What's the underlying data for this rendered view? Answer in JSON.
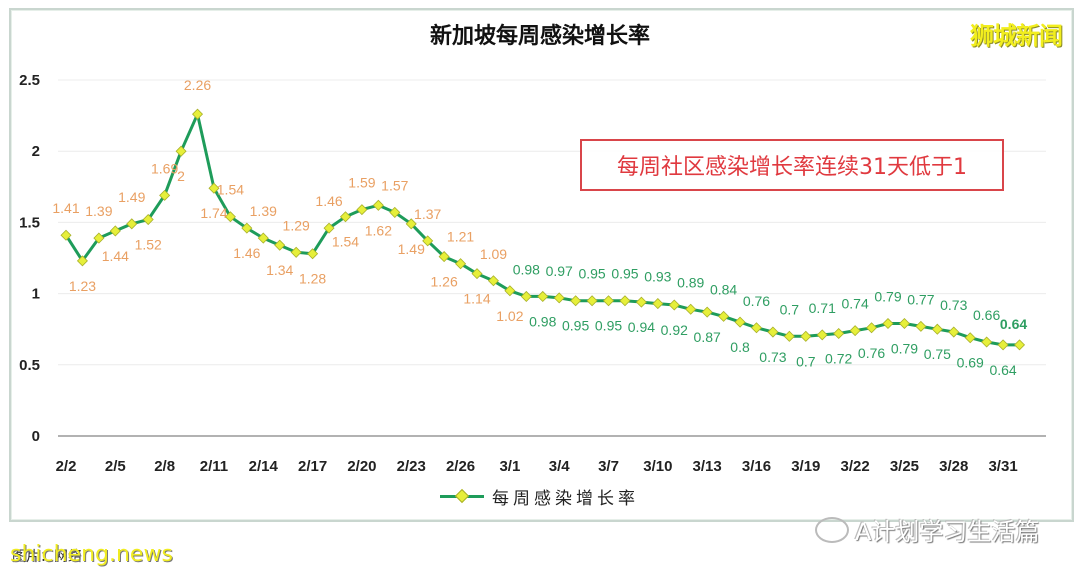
{
  "header": {
    "title": "新加坡每周感染增长率",
    "brand_watermark": "狮城新闻"
  },
  "callout": {
    "text": "每周社区感染增长率连续31天低于1",
    "border_color": "#d9454a",
    "text_color": "#e0393f"
  },
  "legend": {
    "label": "每周感染增长率"
  },
  "footer": {
    "left_watermark": "shicheng.news",
    "left_underlying_text": "图片：网络",
    "right_watermark": "A计划学习生活篇"
  },
  "colors": {
    "line": "#1e9c5a",
    "marker_fill": "#e6ef3a",
    "marker_stroke": "#a8b02a",
    "label_above_one": "#e9a063",
    "label_below_one": "#2f9e62",
    "gridline": "#ececec",
    "axis": "#999999"
  },
  "chart_data": {
    "type": "line",
    "title": "新加坡每周感染增长率",
    "xlabel": "",
    "ylabel": "",
    "ylim": [
      0,
      2.5
    ],
    "yticks": [
      0,
      0.5,
      1,
      1.5,
      2,
      2.5
    ],
    "ytick_labels": [
      "0",
      "0.5",
      "1",
      "1.5",
      "2",
      "2.5"
    ],
    "xtick_labels": [
      "2/2",
      "2/5",
      "2/8",
      "2/11",
      "2/14",
      "2/17",
      "2/20",
      "2/23",
      "2/26",
      "3/1",
      "3/4",
      "3/7",
      "3/10",
      "3/13",
      "3/16",
      "3/19",
      "3/22",
      "3/25",
      "3/28",
      "3/31"
    ],
    "grid": true,
    "legend_position": "bottom",
    "annotation": "每周社区感染增长率连续31天低于1",
    "categories": [
      "2/2",
      "2/3",
      "2/4",
      "2/5",
      "2/6",
      "2/7",
      "2/8",
      "2/9",
      "2/10",
      "2/11",
      "2/12",
      "2/13",
      "2/14",
      "2/15",
      "2/16",
      "2/17",
      "2/18",
      "2/19",
      "2/20",
      "2/21",
      "2/22",
      "2/23",
      "2/24",
      "2/25",
      "2/26",
      "2/27",
      "2/28",
      "3/1",
      "3/2",
      "3/3",
      "3/4",
      "3/5",
      "3/6",
      "3/7",
      "3/8",
      "3/9",
      "3/10",
      "3/11",
      "3/12",
      "3/13",
      "3/14",
      "3/15",
      "3/16",
      "3/17",
      "3/18",
      "3/19",
      "3/20",
      "3/21",
      "3/22",
      "3/23",
      "3/24",
      "3/25",
      "3/26",
      "3/27",
      "3/28",
      "3/29",
      "3/30",
      "3/31",
      "4/1"
    ],
    "series": [
      {
        "name": "每周感染增长率",
        "values": [
          1.41,
          1.23,
          1.39,
          1.44,
          1.49,
          1.52,
          1.69,
          2,
          2.26,
          1.74,
          1.54,
          1.46,
          1.39,
          1.34,
          1.29,
          1.28,
          1.46,
          1.54,
          1.59,
          1.62,
          1.57,
          1.49,
          1.37,
          1.26,
          1.21,
          1.14,
          1.09,
          1.02,
          0.98,
          0.98,
          0.97,
          0.95,
          0.95,
          0.95,
          0.95,
          0.94,
          0.93,
          0.92,
          0.89,
          0.87,
          0.84,
          0.8,
          0.76,
          0.73,
          0.7,
          0.7,
          0.71,
          0.72,
          0.74,
          0.76,
          0.79,
          0.79,
          0.77,
          0.75,
          0.73,
          0.69,
          0.66,
          0.64,
          0.64
        ]
      }
    ],
    "highlight_last_value": "0.64"
  }
}
